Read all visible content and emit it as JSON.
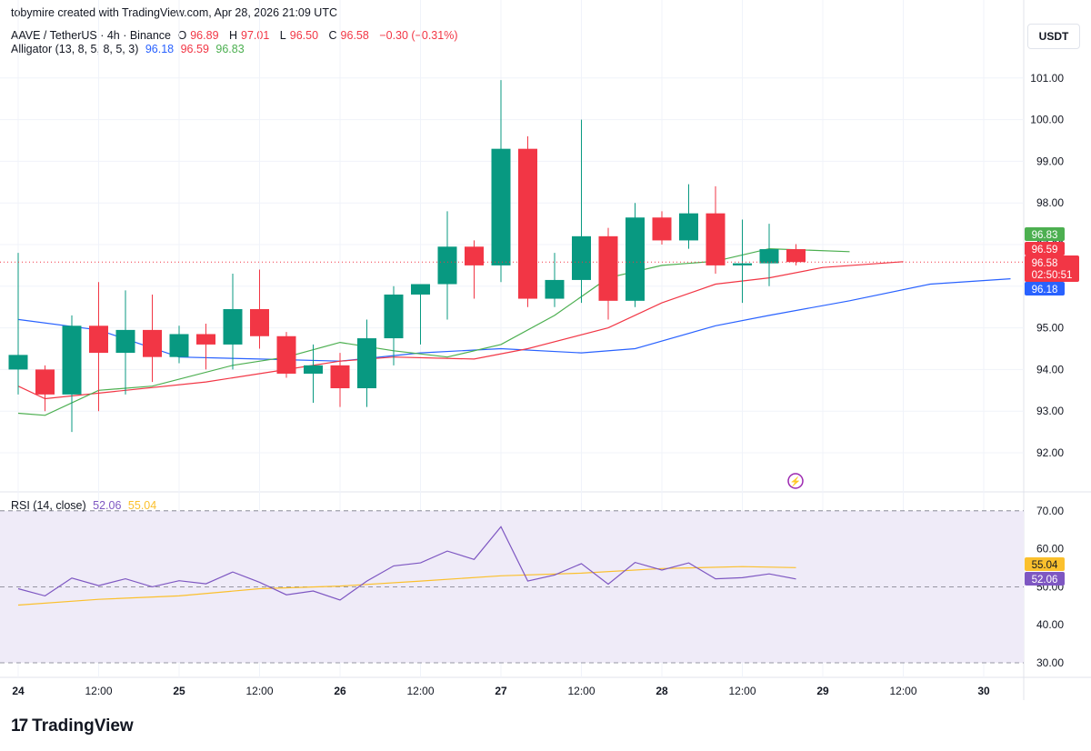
{
  "header": {
    "attribution": "tobymire created with TradingView.com, Apr 28, 2026 21:09 UTC",
    "symbol": "AAVE / TetherUS · 4h · Binance",
    "o_label": "O",
    "o": "96.89",
    "h_label": "H",
    "h": "97.01",
    "l_label": "L",
    "l": "96.50",
    "c_label": "C",
    "c": "96.58",
    "change": "−0.30 (−0.31%)",
    "alligator_label": "Alligator (13, 8, 5, 8, 5, 3)",
    "alligator_jaw": "96.18",
    "alligator_teeth": "96.59",
    "alligator_lips": "96.83",
    "rsi_label": "RSI (14, close)",
    "rsi_value": "52.06",
    "rsi_ma": "55.04",
    "currency": "USDT"
  },
  "colors": {
    "up": "#089981",
    "down": "#f23645",
    "jaw": "#2962ff",
    "teeth": "#f23645",
    "lips": "#4caf50",
    "rsi": "#7e57c2",
    "rsi_ma": "#fbc02d",
    "rsi_band": "#efebf8"
  },
  "tags": {
    "lips": "96.83",
    "teeth": "96.59",
    "price": "96.58",
    "countdown": "02:50:51",
    "jaw": "96.18",
    "rsi_ma": "55.04",
    "rsi": "52.06"
  },
  "footer": {
    "logo": "TradingView"
  },
  "chart_data": [
    {
      "type": "candlestick",
      "title": "AAVE / TetherUS · 4h · Binance",
      "ylim": [
        91.2,
        102.0
      ],
      "y_ticks": [
        "92.00",
        "93.00",
        "94.00",
        "95.00",
        "96.00",
        "97.00",
        "98.00",
        "99.00",
        "100.00",
        "101.00"
      ],
      "x_ticks": [
        {
          "label": "24",
          "i": 0.0
        },
        {
          "label": "12:00",
          "i": 3
        },
        {
          "label": "25",
          "i": 6
        },
        {
          "label": "12:00",
          "i": 9
        },
        {
          "label": "26",
          "i": 12
        },
        {
          "label": "12:00",
          "i": 15
        },
        {
          "label": "27",
          "i": 18
        },
        {
          "label": "12:00",
          "i": 21
        },
        {
          "label": "28",
          "i": 24
        },
        {
          "label": "12:00",
          "i": 27
        },
        {
          "label": "29",
          "i": 30
        },
        {
          "label": "12:00",
          "i": 33
        },
        {
          "label": "30",
          "i": 36
        }
      ],
      "candles": [
        {
          "o": 94.0,
          "h": 96.8,
          "l": 93.4,
          "c": 94.35
        },
        {
          "o": 94.0,
          "h": 94.1,
          "l": 93.0,
          "c": 93.4
        },
        {
          "o": 93.4,
          "h": 95.3,
          "l": 92.5,
          "c": 95.05
        },
        {
          "o": 95.05,
          "h": 96.1,
          "l": 93.0,
          "c": 94.4
        },
        {
          "o": 94.4,
          "h": 95.9,
          "l": 93.4,
          "c": 94.95
        },
        {
          "o": 94.95,
          "h": 95.8,
          "l": 93.7,
          "c": 94.3
        },
        {
          "o": 94.3,
          "h": 95.05,
          "l": 94.15,
          "c": 94.85
        },
        {
          "o": 94.85,
          "h": 95.1,
          "l": 94.0,
          "c": 94.6
        },
        {
          "o": 94.6,
          "h": 96.3,
          "l": 94.0,
          "c": 95.45
        },
        {
          "o": 95.45,
          "h": 96.4,
          "l": 94.5,
          "c": 94.8
        },
        {
          "o": 94.8,
          "h": 94.9,
          "l": 93.8,
          "c": 93.9
        },
        {
          "o": 93.9,
          "h": 94.6,
          "l": 93.2,
          "c": 94.1
        },
        {
          "o": 94.1,
          "h": 94.4,
          "l": 93.1,
          "c": 93.55
        },
        {
          "o": 93.55,
          "h": 95.2,
          "l": 93.1,
          "c": 94.75
        },
        {
          "o": 94.75,
          "h": 96.0,
          "l": 94.1,
          "c": 95.8
        },
        {
          "o": 95.8,
          "h": 96.0,
          "l": 94.6,
          "c": 96.05
        },
        {
          "o": 96.05,
          "h": 97.8,
          "l": 95.2,
          "c": 96.95
        },
        {
          "o": 96.95,
          "h": 97.1,
          "l": 95.7,
          "c": 96.5
        },
        {
          "o": 96.5,
          "h": 100.95,
          "l": 96.1,
          "c": 99.3
        },
        {
          "o": 99.3,
          "h": 99.6,
          "l": 95.5,
          "c": 95.7
        },
        {
          "o": 95.7,
          "h": 96.8,
          "l": 95.5,
          "c": 96.15
        },
        {
          "o": 96.15,
          "h": 100.0,
          "l": 95.6,
          "c": 97.2
        },
        {
          "o": 97.2,
          "h": 97.4,
          "l": 95.2,
          "c": 95.65
        },
        {
          "o": 95.65,
          "h": 98.0,
          "l": 95.5,
          "c": 97.65
        },
        {
          "o": 97.65,
          "h": 97.8,
          "l": 97.0,
          "c": 97.1
        },
        {
          "o": 97.1,
          "h": 98.45,
          "l": 96.9,
          "c": 97.75
        },
        {
          "o": 97.75,
          "h": 98.4,
          "l": 96.3,
          "c": 96.5
        },
        {
          "o": 96.5,
          "h": 97.6,
          "l": 95.6,
          "c": 96.55
        },
        {
          "o": 96.55,
          "h": 97.5,
          "l": 96.0,
          "c": 96.89
        },
        {
          "o": 96.89,
          "h": 97.01,
          "l": 96.5,
          "c": 96.58
        }
      ],
      "series": [
        {
          "name": "Jaw",
          "values": [
            {
              "i": 0,
              "v": 95.2
            },
            {
              "i": 3,
              "v": 94.95
            },
            {
              "i": 6,
              "v": 94.3
            },
            {
              "i": 9,
              "v": 94.25
            },
            {
              "i": 12,
              "v": 94.2
            },
            {
              "i": 15,
              "v": 94.4
            },
            {
              "i": 18,
              "v": 94.5
            },
            {
              "i": 21,
              "v": 94.4
            },
            {
              "i": 23,
              "v": 94.5
            },
            {
              "i": 26,
              "v": 95.05
            },
            {
              "i": 28,
              "v": 95.3
            },
            {
              "i": 31,
              "v": 95.65
            },
            {
              "i": 34,
              "v": 96.05
            },
            {
              "i": 37,
              "v": 96.18
            }
          ]
        },
        {
          "name": "Teeth",
          "values": [
            {
              "i": 0,
              "v": 93.6
            },
            {
              "i": 1,
              "v": 93.3
            },
            {
              "i": 4,
              "v": 93.5
            },
            {
              "i": 7,
              "v": 93.7
            },
            {
              "i": 10,
              "v": 94.0
            },
            {
              "i": 12,
              "v": 94.2
            },
            {
              "i": 14,
              "v": 94.3
            },
            {
              "i": 17,
              "v": 94.25
            },
            {
              "i": 19,
              "v": 94.5
            },
            {
              "i": 22,
              "v": 95.0
            },
            {
              "i": 24,
              "v": 95.6
            },
            {
              "i": 26,
              "v": 96.05
            },
            {
              "i": 28,
              "v": 96.2
            },
            {
              "i": 30,
              "v": 96.45
            },
            {
              "i": 33,
              "v": 96.59
            }
          ]
        },
        {
          "name": "Lips",
          "values": [
            {
              "i": 0,
              "v": 92.95
            },
            {
              "i": 1,
              "v": 92.9
            },
            {
              "i": 3,
              "v": 93.5
            },
            {
              "i": 5,
              "v": 93.6
            },
            {
              "i": 8,
              "v": 94.1
            },
            {
              "i": 10,
              "v": 94.3
            },
            {
              "i": 12,
              "v": 94.65
            },
            {
              "i": 14,
              "v": 94.45
            },
            {
              "i": 16,
              "v": 94.3
            },
            {
              "i": 18,
              "v": 94.6
            },
            {
              "i": 20,
              "v": 95.3
            },
            {
              "i": 22,
              "v": 96.2
            },
            {
              "i": 24,
              "v": 96.5
            },
            {
              "i": 26,
              "v": 96.6
            },
            {
              "i": 28,
              "v": 96.9
            },
            {
              "i": 31,
              "v": 96.83
            }
          ]
        }
      ]
    },
    {
      "type": "line",
      "title": "RSI (14, close)",
      "ylim": [
        27.5,
        72.5
      ],
      "y_ticks": [
        "30.00",
        "40.00",
        "50.00",
        "60.00",
        "70.00"
      ],
      "band": [
        30,
        70
      ],
      "midline": 50,
      "series": [
        {
          "name": "RSI",
          "values": [
            49.5,
            47.6,
            52.3,
            50.3,
            52.1,
            50.0,
            51.6,
            50.8,
            53.9,
            51.2,
            47.9,
            48.9,
            46.5,
            51.5,
            55.5,
            56.3,
            59.4,
            57.2,
            65.8,
            51.5,
            53.1,
            56.1,
            50.7,
            56.4,
            54.4,
            56.3,
            52.1,
            52.4,
            53.4,
            52.06
          ]
        },
        {
          "name": "MA",
          "values": [
            {
              "i": 0,
              "v": 45.2
            },
            {
              "i": 3,
              "v": 46.7
            },
            {
              "i": 6,
              "v": 47.6
            },
            {
              "i": 9,
              "v": 49.5
            },
            {
              "i": 12,
              "v": 50.2
            },
            {
              "i": 15,
              "v": 51.5
            },
            {
              "i": 18,
              "v": 52.9
            },
            {
              "i": 21,
              "v": 53.6
            },
            {
              "i": 24,
              "v": 54.8
            },
            {
              "i": 27,
              "v": 55.3
            },
            {
              "i": 29,
              "v": 55.04
            }
          ]
        }
      ]
    }
  ]
}
